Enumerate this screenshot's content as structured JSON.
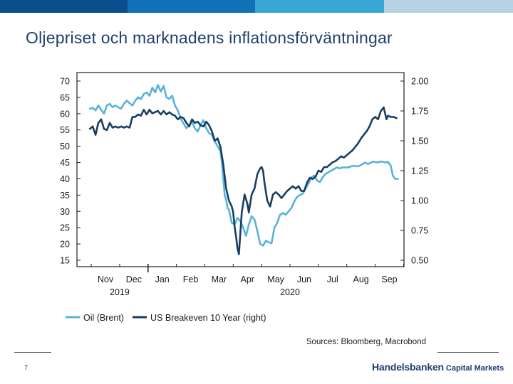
{
  "title": "Oljepriset och marknadens inflationsförväntningar",
  "page_number": "7",
  "brand": {
    "main": "Handelsbanken",
    "sub": "Capital Markets"
  },
  "top_bar_colors": [
    "#0a4f8c",
    "#1172b8",
    "#3aa6d6",
    "#b7d3e2"
  ],
  "chart_data": {
    "type": "line",
    "title": "",
    "source": "Sources: Bloomberg, Macrobond",
    "x_ticks": [
      "Nov",
      "Dec",
      "Jan",
      "Feb",
      "Mar",
      "Apr",
      "May",
      "Jun",
      "Jul",
      "Aug",
      "Sep"
    ],
    "x_year_labels": [
      {
        "label": "2019",
        "month_index": 0.5
      },
      {
        "label": "2020",
        "month_index": 6.5
      }
    ],
    "y_left": {
      "ticks": [
        "70",
        "65",
        "60",
        "55",
        "50",
        "45",
        "40",
        "35",
        "30",
        "25",
        "20",
        "15"
      ],
      "ylim": [
        15,
        70
      ]
    },
    "y_right": {
      "ticks": [
        "2.00",
        "1.75",
        "1.50",
        "1.25",
        "1.00",
        "0.75",
        "0.50"
      ],
      "ylim": [
        0.5,
        2.0
      ]
    },
    "series": [
      {
        "name": "Oil (Brent)",
        "axis": "left",
        "color": "#5ab2d6",
        "points": [
          [
            -0.55,
            61.5
          ],
          [
            -0.45,
            61.8
          ],
          [
            -0.35,
            61
          ],
          [
            -0.25,
            62.5
          ],
          [
            -0.15,
            61.2
          ],
          [
            -0.05,
            60
          ],
          [
            0.05,
            62.5
          ],
          [
            0.15,
            63
          ],
          [
            0.25,
            62
          ],
          [
            0.35,
            62.5
          ],
          [
            0.45,
            62
          ],
          [
            0.55,
            61.5
          ],
          [
            0.65,
            63
          ],
          [
            0.75,
            64
          ],
          [
            0.85,
            63.2
          ],
          [
            0.95,
            62.5
          ],
          [
            1.05,
            64
          ],
          [
            1.15,
            65
          ],
          [
            1.25,
            64.5
          ],
          [
            1.35,
            66
          ],
          [
            1.45,
            66.5
          ],
          [
            1.55,
            65.5
          ],
          [
            1.65,
            68
          ],
          [
            1.75,
            66.5
          ],
          [
            1.85,
            68.8
          ],
          [
            1.95,
            66.8
          ],
          [
            2.05,
            68.5
          ],
          [
            2.15,
            65
          ],
          [
            2.25,
            64.5
          ],
          [
            2.35,
            65.5
          ],
          [
            2.45,
            62.5
          ],
          [
            2.55,
            61
          ],
          [
            2.65,
            58.5
          ],
          [
            2.75,
            57
          ],
          [
            2.85,
            55.5
          ],
          [
            2.95,
            56.5
          ],
          [
            3.05,
            57.5
          ],
          [
            3.15,
            55.5
          ],
          [
            3.25,
            54.5
          ],
          [
            3.35,
            56.5
          ],
          [
            3.45,
            58
          ],
          [
            3.55,
            55.5
          ],
          [
            3.65,
            54
          ],
          [
            3.75,
            53.5
          ],
          [
            3.85,
            51.5
          ],
          [
            3.95,
            50
          ],
          [
            4.05,
            48.5
          ],
          [
            4.1,
            45
          ],
          [
            4.15,
            40
          ],
          [
            4.2,
            35
          ],
          [
            4.25,
            33.5
          ],
          [
            4.3,
            31
          ],
          [
            4.35,
            30.5
          ],
          [
            4.45,
            26.5
          ],
          [
            4.55,
            26
          ],
          [
            4.65,
            28
          ],
          [
            4.75,
            27
          ],
          [
            4.85,
            25
          ],
          [
            4.95,
            22.5
          ],
          [
            5.05,
            26
          ],
          [
            5.15,
            28.5
          ],
          [
            5.25,
            27.5
          ],
          [
            5.35,
            24
          ],
          [
            5.45,
            20
          ],
          [
            5.55,
            19.5
          ],
          [
            5.65,
            21
          ],
          [
            5.75,
            20.5
          ],
          [
            5.85,
            20.2
          ],
          [
            5.95,
            25
          ],
          [
            6.05,
            26.5
          ],
          [
            6.15,
            29
          ],
          [
            6.25,
            29.5
          ],
          [
            6.35,
            29
          ],
          [
            6.45,
            30
          ],
          [
            6.55,
            31
          ],
          [
            6.65,
            33
          ],
          [
            6.75,
            34.5
          ],
          [
            6.85,
            35
          ],
          [
            6.95,
            35.5
          ],
          [
            7.05,
            37
          ],
          [
            7.15,
            38.5
          ],
          [
            7.25,
            40.5
          ],
          [
            7.35,
            41
          ],
          [
            7.45,
            39.5
          ],
          [
            7.55,
            39
          ],
          [
            7.65,
            40.5
          ],
          [
            7.75,
            41.5
          ],
          [
            7.85,
            42
          ],
          [
            7.95,
            42.5
          ],
          [
            8.05,
            43
          ],
          [
            8.15,
            43.5
          ],
          [
            8.25,
            43.2
          ],
          [
            8.35,
            43.5
          ],
          [
            8.45,
            43.5
          ],
          [
            8.55,
            43.5
          ],
          [
            8.65,
            43.8
          ],
          [
            8.75,
            44
          ],
          [
            8.85,
            43.8
          ],
          [
            8.95,
            44
          ],
          [
            9.05,
            44.5
          ],
          [
            9.15,
            45
          ],
          [
            9.25,
            44.5
          ],
          [
            9.35,
            45
          ],
          [
            9.45,
            45.3
          ],
          [
            9.55,
            45
          ],
          [
            9.65,
            45.2
          ],
          [
            9.75,
            45.3
          ],
          [
            9.85,
            45
          ],
          [
            9.95,
            45.2
          ],
          [
            10.05,
            44
          ],
          [
            10.12,
            41
          ],
          [
            10.2,
            40
          ],
          [
            10.3,
            40
          ]
        ]
      },
      {
        "name": "US Breakeven 10 Year (right)",
        "axis": "right",
        "color": "#173e63",
        "points": [
          [
            -0.55,
            1.6
          ],
          [
            -0.45,
            1.62
          ],
          [
            -0.35,
            1.55
          ],
          [
            -0.25,
            1.65
          ],
          [
            -0.15,
            1.68
          ],
          [
            -0.05,
            1.6
          ],
          [
            0.05,
            1.59
          ],
          [
            0.15,
            1.65
          ],
          [
            0.25,
            1.61
          ],
          [
            0.35,
            1.62
          ],
          [
            0.45,
            1.61
          ],
          [
            0.55,
            1.62
          ],
          [
            0.65,
            1.61
          ],
          [
            0.75,
            1.62
          ],
          [
            0.85,
            1.61
          ],
          [
            0.95,
            1.7
          ],
          [
            1.05,
            1.7
          ],
          [
            1.15,
            1.72
          ],
          [
            1.25,
            1.71
          ],
          [
            1.35,
            1.76
          ],
          [
            1.45,
            1.72
          ],
          [
            1.55,
            1.76
          ],
          [
            1.65,
            1.73
          ],
          [
            1.75,
            1.74
          ],
          [
            1.85,
            1.75
          ],
          [
            1.95,
            1.72
          ],
          [
            2.05,
            1.75
          ],
          [
            2.15,
            1.72
          ],
          [
            2.25,
            1.74
          ],
          [
            2.35,
            1.72
          ],
          [
            2.45,
            1.71
          ],
          [
            2.55,
            1.68
          ],
          [
            2.65,
            1.7
          ],
          [
            2.75,
            1.69
          ],
          [
            2.85,
            1.65
          ],
          [
            2.95,
            1.62
          ],
          [
            3.05,
            1.68
          ],
          [
            3.15,
            1.65
          ],
          [
            3.25,
            1.66
          ],
          [
            3.35,
            1.63
          ],
          [
            3.45,
            1.62
          ],
          [
            3.55,
            1.66
          ],
          [
            3.65,
            1.63
          ],
          [
            3.75,
            1.58
          ],
          [
            3.85,
            1.5
          ],
          [
            3.95,
            1.52
          ],
          [
            4.05,
            1.45
          ],
          [
            4.15,
            1.3
          ],
          [
            4.25,
            1.1
          ],
          [
            4.35,
            1.0
          ],
          [
            4.45,
            0.95
          ],
          [
            4.5,
            0.9
          ],
          [
            4.55,
            0.78
          ],
          [
            4.6,
            0.7
          ],
          [
            4.65,
            0.6
          ],
          [
            4.7,
            0.55
          ],
          [
            4.8,
            0.9
          ],
          [
            4.9,
            1.05
          ],
          [
            5.0,
            0.97
          ],
          [
            5.05,
            0.9
          ],
          [
            5.15,
            1.05
          ],
          [
            5.25,
            1.1
          ],
          [
            5.35,
            1.22
          ],
          [
            5.45,
            1.27
          ],
          [
            5.5,
            1.28
          ],
          [
            5.55,
            1.25
          ],
          [
            5.6,
            1.15
          ],
          [
            5.7,
            1.0
          ],
          [
            5.8,
            0.95
          ],
          [
            5.9,
            1.05
          ],
          [
            6.0,
            1.07
          ],
          [
            6.1,
            1.05
          ],
          [
            6.2,
            1.02
          ],
          [
            6.3,
            1.05
          ],
          [
            6.4,
            1.08
          ],
          [
            6.5,
            1.1
          ],
          [
            6.6,
            1.12
          ],
          [
            6.7,
            1.1
          ],
          [
            6.8,
            1.12
          ],
          [
            6.9,
            1.08
          ],
          [
            7.0,
            1.08
          ],
          [
            7.1,
            1.15
          ],
          [
            7.2,
            1.19
          ],
          [
            7.3,
            1.18
          ],
          [
            7.4,
            1.2
          ],
          [
            7.5,
            1.25
          ],
          [
            7.6,
            1.24
          ],
          [
            7.7,
            1.28
          ],
          [
            7.8,
            1.28
          ],
          [
            7.9,
            1.3
          ],
          [
            8.0,
            1.32
          ],
          [
            8.1,
            1.33
          ],
          [
            8.2,
            1.35
          ],
          [
            8.3,
            1.37
          ],
          [
            8.4,
            1.36
          ],
          [
            8.5,
            1.38
          ],
          [
            8.6,
            1.4
          ],
          [
            8.7,
            1.42
          ],
          [
            8.8,
            1.45
          ],
          [
            8.9,
            1.48
          ],
          [
            9.0,
            1.52
          ],
          [
            9.1,
            1.55
          ],
          [
            9.2,
            1.58
          ],
          [
            9.3,
            1.62
          ],
          [
            9.4,
            1.68
          ],
          [
            9.5,
            1.7
          ],
          [
            9.6,
            1.68
          ],
          [
            9.7,
            1.75
          ],
          [
            9.8,
            1.78
          ],
          [
            9.85,
            1.73
          ],
          [
            9.9,
            1.68
          ],
          [
            9.95,
            1.71
          ],
          [
            10.05,
            1.7
          ],
          [
            10.15,
            1.7
          ],
          [
            10.25,
            1.69
          ]
        ]
      }
    ]
  }
}
